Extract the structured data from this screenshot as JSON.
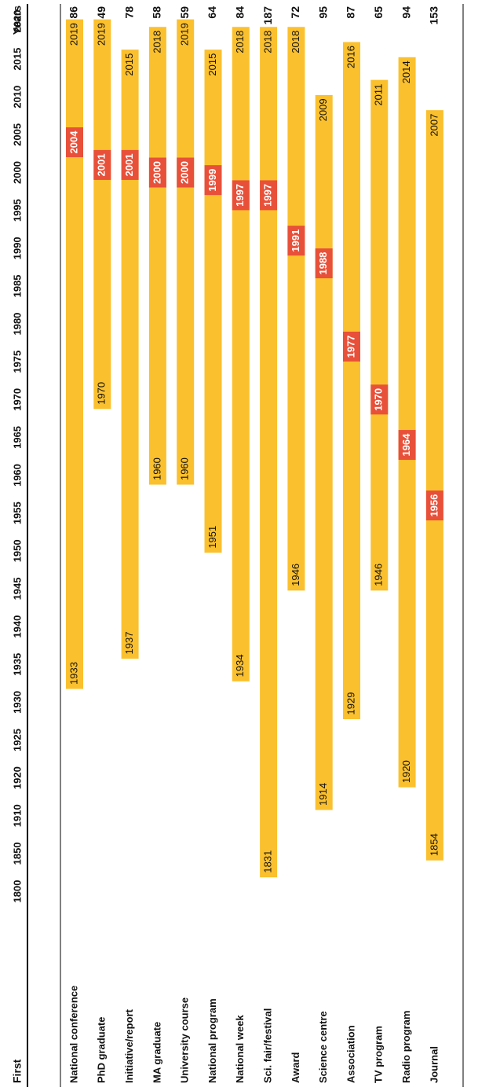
{
  "chart_data": {
    "type": "bar",
    "orientation": "horizontal-range",
    "rotated": true,
    "header": {
      "left": "First",
      "right": "Years"
    },
    "x_axis_ticks": [
      "1800",
      "1850",
      "1910",
      "1920",
      "1925",
      "1930",
      "1935",
      "1940",
      "1945",
      "1950",
      "1955",
      "1960",
      "1965",
      "1970",
      "1975",
      "1980",
      "1985",
      "1990",
      "1995",
      "2000",
      "2005",
      "2010",
      "2015",
      "2020"
    ],
    "rows": [
      {
        "category": "National conference",
        "start": 1933,
        "end": 2019,
        "highlight": 2004,
        "years": 86
      },
      {
        "category": "PhD graduate",
        "start": 1970,
        "end": 2019,
        "highlight": 2001,
        "years": 49
      },
      {
        "category": "Initiative/report",
        "start": 1937,
        "end": 2015,
        "highlight": 2001,
        "years": 78
      },
      {
        "category": "MA graduate",
        "start": 1960,
        "end": 2018,
        "highlight": 2000,
        "years": 58
      },
      {
        "category": "University course",
        "start": 1960,
        "end": 2019,
        "highlight": 2000,
        "years": 59
      },
      {
        "category": "National program",
        "start": 1951,
        "end": 2015,
        "highlight": 1999,
        "years": 64
      },
      {
        "category": "National week",
        "start": 1934,
        "end": 2018,
        "highlight": 1997,
        "years": 84
      },
      {
        "category": "Sci. fair/festival",
        "start": 1831,
        "end": 2018,
        "highlight": 1997,
        "years": 187
      },
      {
        "category": "Award",
        "start": 1946,
        "end": 2018,
        "highlight": 1991,
        "years": 72
      },
      {
        "category": "Science centre",
        "start": 1914,
        "end": 2009,
        "highlight": 1988,
        "years": 95
      },
      {
        "category": "Association",
        "start": 1929,
        "end": 2016,
        "highlight": 1977,
        "years": 87
      },
      {
        "category": "TV program",
        "start": 1946,
        "end": 2011,
        "highlight": 1970,
        "years": 65
      },
      {
        "category": "Radio program",
        "start": 1920,
        "end": 2014,
        "highlight": 1964,
        "years": 94
      },
      {
        "category": "Journal",
        "start": 1854,
        "end": 2007,
        "highlight": 1956,
        "years": 153
      }
    ],
    "colors": {
      "bar": "#FBC02D",
      "highlight": "#E8503A",
      "text": "#111111",
      "highlight_text": "#ffffff"
    },
    "grid": false,
    "legend": "none"
  }
}
